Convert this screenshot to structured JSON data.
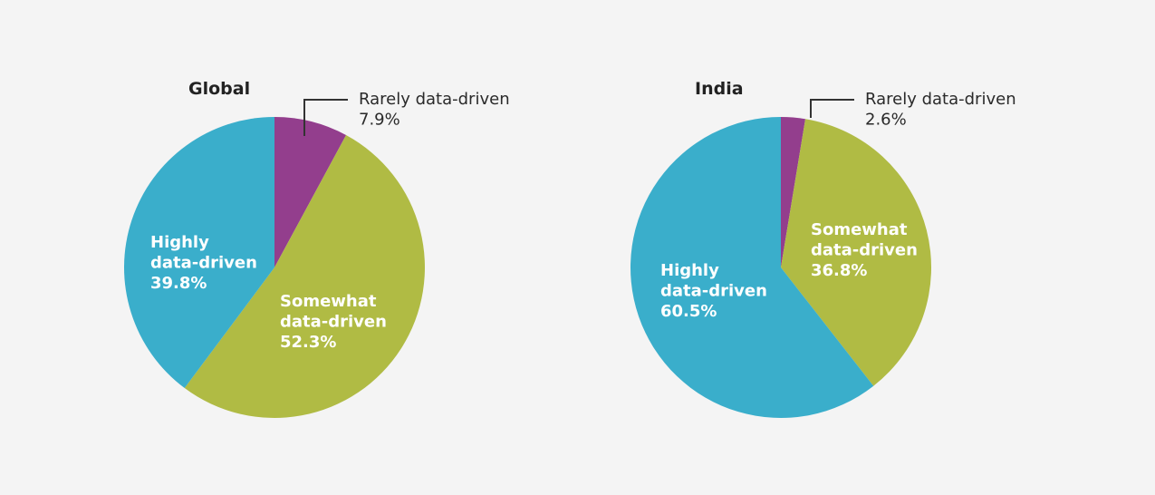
{
  "colors": {
    "background": "#f4f4f4",
    "highly": "#3aaecb",
    "somewhat": "#b0bb44",
    "rarely": "#933e8d"
  },
  "chart_data": [
    {
      "type": "pie",
      "title": "Global",
      "slices": [
        {
          "key": "rarely",
          "line1": "Rarely data-driven",
          "value": 7.9,
          "value_label": "7.9%",
          "color": "#933e8d"
        },
        {
          "key": "somewhat",
          "line1": "Somewhat",
          "line2": "data-driven",
          "value": 52.3,
          "value_label": "52.3%",
          "color": "#b0bb44"
        },
        {
          "key": "highly",
          "line1": "Highly",
          "line2": "data-driven",
          "value": 39.8,
          "value_label": "39.8%",
          "color": "#3aaecb"
        }
      ]
    },
    {
      "type": "pie",
      "title": "India",
      "slices": [
        {
          "key": "rarely",
          "line1": "Rarely data-driven",
          "value": 2.6,
          "value_label": "2.6%",
          "color": "#933e8d"
        },
        {
          "key": "somewhat",
          "line1": "Somewhat",
          "line2": "data-driven",
          "value": 36.8,
          "value_label": "36.8%",
          "color": "#b0bb44"
        },
        {
          "key": "highly",
          "line1": "Highly",
          "line2": "data-driven",
          "value": 60.5,
          "value_label": "60.5%",
          "color": "#3aaecb"
        }
      ]
    }
  ]
}
